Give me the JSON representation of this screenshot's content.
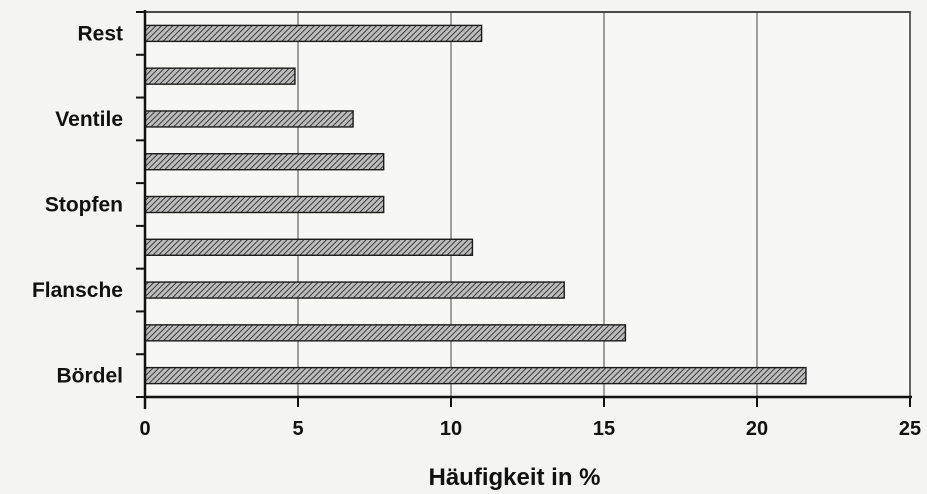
{
  "chart_data": {
    "type": "bar",
    "orientation": "horizontal",
    "categories": [
      "Bördel",
      "",
      "Flansche",
      "",
      "Stopfen",
      "",
      "Ventile",
      "",
      "Rest"
    ],
    "values": [
      21.6,
      15.7,
      13.7,
      10.7,
      7.8,
      7.8,
      6.8,
      4.9,
      11.0
    ],
    "xlabel": "Häufigkeit in %",
    "ylabel": "",
    "xlim": [
      0,
      25
    ],
    "xticks": [
      "0",
      "5",
      "10",
      "15",
      "20",
      "25"
    ],
    "grid": "vertical",
    "legend": "none",
    "bar_fill": "hatched",
    "colors": {
      "bar_fill": "#8a8a8a",
      "bar_stroke": "#1a1a1a",
      "grid": "#444444",
      "axis": "#111111",
      "background": "#f4f4f2"
    }
  }
}
